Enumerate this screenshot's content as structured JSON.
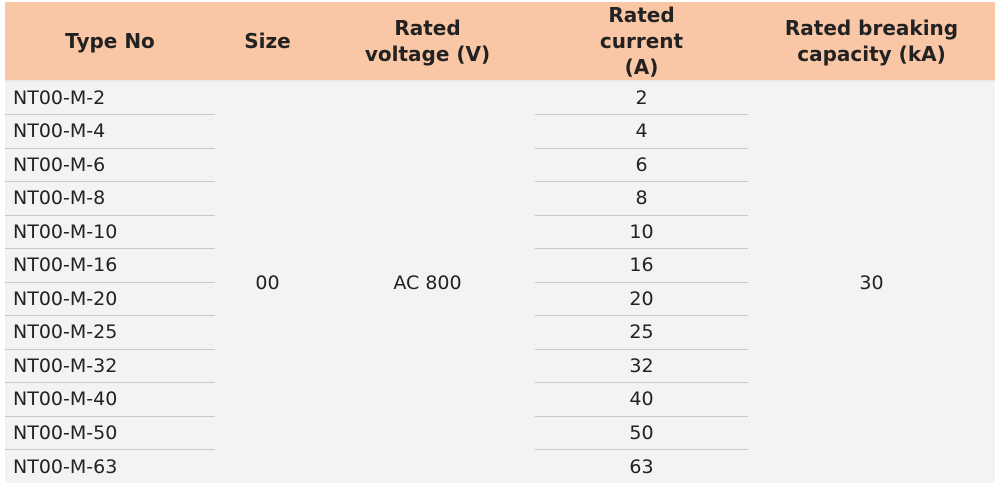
{
  "table": {
    "header": [
      "Type No",
      "Size",
      "Rated voltage (V)",
      "Rated current (A)",
      "Rated breaking capacity (kA)"
    ],
    "size": "00",
    "voltage": "AC 800",
    "breaking_capacity": "30",
    "rows": [
      [
        "NT00-M-2",
        "2"
      ],
      [
        "NT00-M-4",
        "4"
      ],
      [
        "NT00-M-6",
        "6"
      ],
      [
        "NT00-M-8",
        "8"
      ],
      [
        "NT00-M-10",
        "10"
      ],
      [
        "NT00-M-16",
        "16"
      ],
      [
        "NT00-M-20",
        "20"
      ],
      [
        "NT00-M-25",
        "25"
      ],
      [
        "NT00-M-32",
        "32"
      ],
      [
        "NT00-M-40",
        "40"
      ],
      [
        "NT00-M-50",
        "50"
      ],
      [
        "NT00-M-63",
        "63"
      ]
    ]
  }
}
